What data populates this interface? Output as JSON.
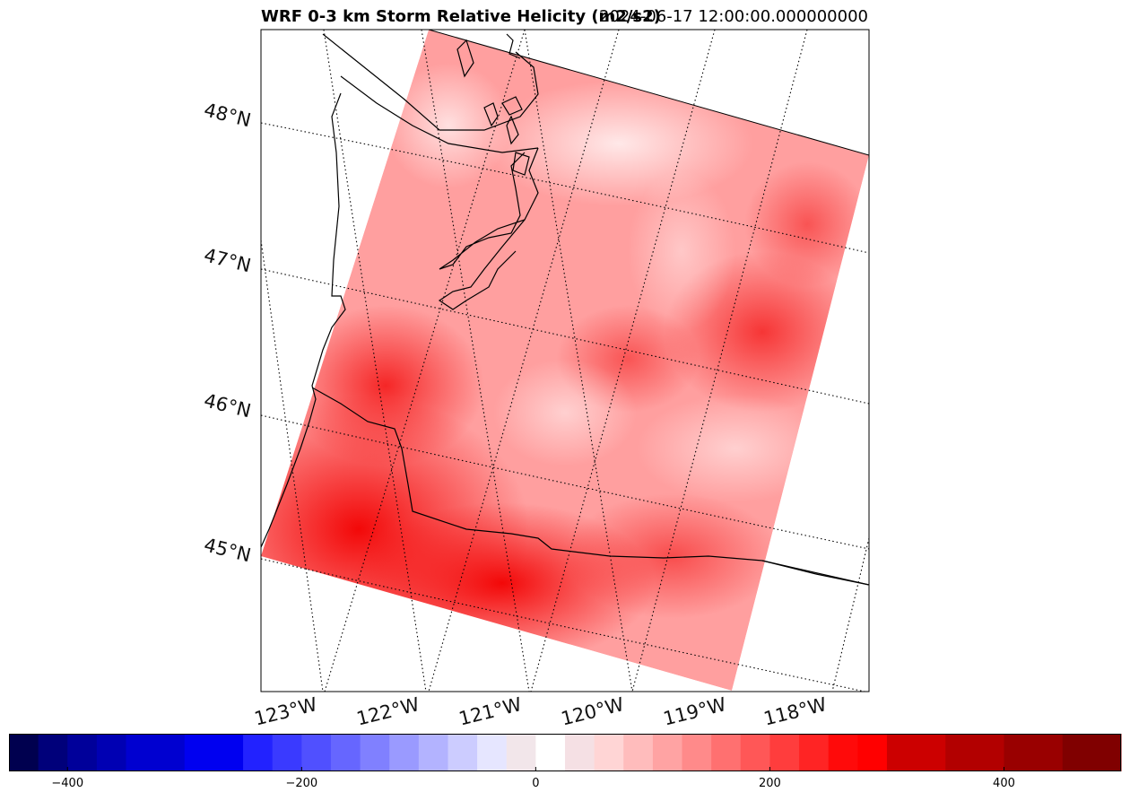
{
  "title_main": "WRF 0-3 km Storm Relative Helicity (m2/s2)",
  "title_time": "2024-06-17 12:00:00.000000000",
  "lat_labels": [
    "48°N",
    "47°N",
    "46°N",
    "45°N"
  ],
  "lon_labels": [
    "123°W",
    "122°W",
    "121°W",
    "120°W",
    "119°W",
    "118°W"
  ],
  "colorbar": {
    "min": -450,
    "max": 500,
    "tick_values": [
      -400,
      -200,
      0,
      200,
      400
    ],
    "tick_labels": [
      "−400",
      "−200",
      "0",
      "200",
      "400"
    ],
    "bin_edges": [
      -450,
      -425,
      -400,
      -375,
      -350,
      -300,
      -250,
      -225,
      -200,
      -175,
      -150,
      -125,
      -100,
      -75,
      -50,
      -25,
      0,
      25,
      50,
      75,
      100,
      125,
      150,
      175,
      200,
      225,
      250,
      275,
      300,
      350,
      400,
      450,
      500
    ],
    "bin_colors": [
      "#00004f",
      "#00007a",
      "#00009a",
      "#0000b3",
      "#0000d0",
      "#0000f0",
      "#2222ff",
      "#3a3aff",
      "#5050ff",
      "#6666ff",
      "#8080ff",
      "#9a9aff",
      "#b3b3ff",
      "#ccccff",
      "#e6e6ff",
      "#f2e6ea",
      "#ffffff",
      "#f5e0e4",
      "#ffd5d5",
      "#ffbcbc",
      "#ffa3a3",
      "#ff8a8a",
      "#ff7070",
      "#ff5757",
      "#ff3d3d",
      "#ff2424",
      "#ff0a0a",
      "#ff0000",
      "#cc0000",
      "#b20000",
      "#990000",
      "#800000"
    ]
  },
  "map_colors": {
    "background": "#ffffff",
    "field_base": "#ff9f9f",
    "field_strong": "#f50000",
    "coastline": "#000000",
    "gridline": "#000000"
  }
}
